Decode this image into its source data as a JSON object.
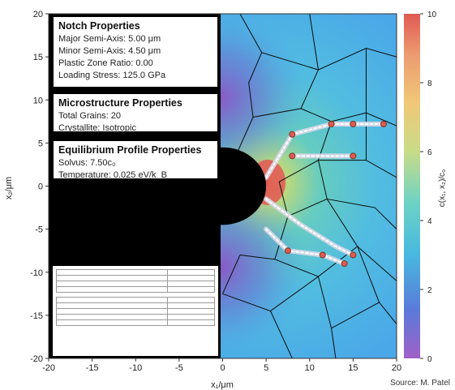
{
  "chart_data": {
    "type": "heatmap",
    "xlabel": "x₁/μm",
    "ylabel": "x₂/μm",
    "xlim": [
      -20,
      20
    ],
    "ylim": [
      -20,
      20
    ],
    "x_ticks": [
      -20,
      -15,
      -10,
      -5,
      0,
      5,
      10,
      15,
      20
    ],
    "y_ticks": [
      -20,
      -15,
      -10,
      -5,
      0,
      5,
      10,
      15,
      20
    ],
    "colorbar": {
      "label": "c(x₁, x₂)/c₀",
      "range": [
        0,
        10
      ],
      "ticks": [
        0,
        2,
        4,
        6,
        8,
        10
      ],
      "colors": [
        "#a060c8",
        "#5a7ad8",
        "#48b8e0",
        "#6cd2c4",
        "#c8dc88",
        "#f0c878",
        "#ec9c70",
        "#e05a54"
      ]
    },
    "notch": {
      "center": [
        0,
        0
      ],
      "semi_axis_x": 5.0,
      "semi_axis_y": 4.5,
      "color": "#000000"
    },
    "grain_boundaries": [
      [
        [
          2,
          20
        ],
        [
          4.5,
          15.5
        ],
        [
          11,
          13.5
        ],
        [
          16.5,
          16
        ],
        [
          20,
          15
        ]
      ],
      [
        [
          10,
          20
        ],
        [
          11,
          13.5
        ]
      ],
      [
        [
          4.5,
          15.5
        ],
        [
          3,
          12
        ],
        [
          3.5,
          8
        ],
        [
          1.5,
          3.5
        ]
      ],
      [
        [
          3.5,
          8
        ],
        [
          9,
          9
        ],
        [
          11,
          13.5
        ]
      ],
      [
        [
          9,
          9
        ],
        [
          12.5,
          7.5
        ],
        [
          16.5,
          8.5
        ],
        [
          20,
          7
        ]
      ],
      [
        [
          16.5,
          16
        ],
        [
          16.5,
          8.5
        ]
      ],
      [
        [
          12.5,
          7.5
        ],
        [
          11,
          3
        ],
        [
          6.5,
          0.5
        ]
      ],
      [
        [
          11,
          3
        ],
        [
          16.5,
          3
        ],
        [
          20,
          1
        ]
      ],
      [
        [
          16.5,
          3
        ],
        [
          16.5,
          8.5
        ]
      ],
      [
        [
          12,
          -1.5
        ],
        [
          11,
          3
        ]
      ],
      [
        [
          12,
          -1.5
        ],
        [
          17.5,
          -2.5
        ],
        [
          20,
          -5
        ]
      ],
      [
        [
          12,
          -1.5
        ],
        [
          15.5,
          -7
        ],
        [
          20,
          -11
        ]
      ],
      [
        [
          6.5,
          0.5
        ],
        [
          7.5,
          -3.5
        ],
        [
          12,
          -1.5
        ]
      ],
      [
        [
          7.5,
          -3.5
        ],
        [
          6,
          -8.5
        ],
        [
          2,
          -8
        ]
      ],
      [
        [
          6,
          -8.5
        ],
        [
          11,
          -10.5
        ],
        [
          15.5,
          -7
        ]
      ],
      [
        [
          15.5,
          -7
        ],
        [
          18,
          -13.5
        ],
        [
          20,
          -16
        ]
      ],
      [
        [
          18,
          -13.5
        ],
        [
          12.5,
          -16.5
        ],
        [
          11,
          -10.5
        ]
      ],
      [
        [
          12.5,
          -16.5
        ],
        [
          13,
          -20
        ]
      ],
      [
        [
          11,
          -10.5
        ],
        [
          5.5,
          -14.5
        ],
        [
          0,
          -12.5
        ]
      ],
      [
        [
          5.5,
          -14.5
        ],
        [
          8,
          -20
        ]
      ],
      [
        [
          2,
          -8
        ],
        [
          0,
          -12.5
        ]
      ]
    ],
    "cracks": [
      [
        [
          5,
          1
        ],
        [
          8,
          6
        ],
        [
          12.5,
          7.2
        ],
        [
          15,
          7.2
        ]
      ],
      [
        [
          12.5,
          7.2
        ],
        [
          18.5,
          7.2
        ]
      ],
      [
        [
          8,
          3.5
        ],
        [
          15,
          3.5
        ]
      ],
      [
        [
          5,
          -1.5
        ],
        [
          9,
          -4.5
        ],
        [
          13,
          -7
        ],
        [
          15,
          -8
        ]
      ],
      [
        [
          5,
          -5
        ],
        [
          7.5,
          -7.5
        ],
        [
          11.5,
          -8
        ],
        [
          14,
          -9
        ]
      ]
    ],
    "crack_tips": [
      [
        8,
        6
      ],
      [
        12.5,
        7.2
      ],
      [
        15,
        7.2
      ],
      [
        18.5,
        7.2
      ],
      [
        8,
        3.5
      ],
      [
        15,
        3.5
      ],
      [
        15,
        -8
      ],
      [
        7.5,
        -7.5
      ],
      [
        11.5,
        -8
      ],
      [
        14,
        -9
      ]
    ]
  },
  "notch_properties": {
    "title": "Notch Properties",
    "major_semi_axis": "Major Semi-Axis: 5.00 μm",
    "minor_semi_axis": "Minor Semi-Axis: 4.50 μm",
    "plastic_zone_ratio": "Plastic Zone Ratio: 0.00",
    "loading_stress": "Loading Stress: 125.0 GPa"
  },
  "microstructure_properties": {
    "title": "Microstructure Properties",
    "total_grains": "Total Grains: 20",
    "crystallite": "Crystallite: Isotropic"
  },
  "equilibrium_properties": {
    "title": "Equilibrium Profile Properties",
    "solvus": "Solvus: 7.50c₀",
    "temperature": "Temperature: 0.025 eV/k_B"
  },
  "source": "Source:  M. Patel"
}
